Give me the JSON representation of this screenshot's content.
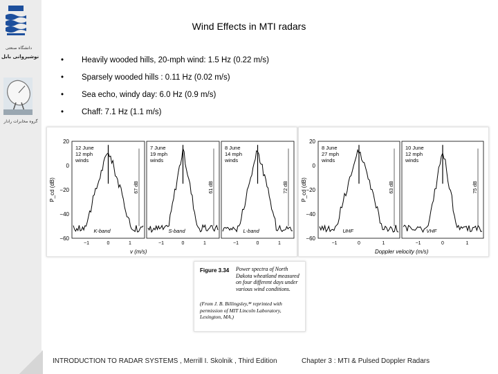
{
  "sidebar": {
    "logo_icon": "university-wave-logo",
    "university_name": "دانشگاه صنعتی",
    "department_name": "نوشیروانی بابل",
    "antenna_icon": "radar-antenna-photo",
    "group_name": "گروه مخابرات رادار"
  },
  "slide": {
    "title": "Wind Effects in MTI radars",
    "bullets": [
      "Heavily wooded hills, 20-mph wind: 1.5 Hz (0.22 m/s)",
      "Sparsely wooded hills : 0.11 Hz (0.02 m/s)",
      "Sea echo, windy day:  6.0 Hz (0.9 m/s)",
      "Chaff: 7.1 Hz (1.1 m/s)"
    ],
    "bullet_symbol": "•"
  },
  "figure_left": {
    "ylabel": "P_cd (dB)",
    "xlabel": "v (m/s)",
    "y_ticks": [
      "20",
      "0",
      "−20",
      "−40",
      "−60"
    ],
    "x_ticks": [
      "−1",
      "0",
      "1"
    ],
    "panels": [
      {
        "date": "12 June",
        "speed": "12 mph",
        "wind": "winds",
        "band": "K-band",
        "level": "67 dB"
      },
      {
        "date": "7 June",
        "speed": "19 mph",
        "wind": "winds",
        "band": "S-band",
        "level": "61 dB"
      },
      {
        "date": "8 June",
        "speed": "14 mph",
        "wind": "winds",
        "band": "L-band",
        "level": "72 dB"
      }
    ]
  },
  "figure_right": {
    "ylabel": "P_cd (dB)",
    "xlabel": "Doppler velocity (m/s)",
    "y_ticks": [
      "20",
      "0",
      "−20",
      "−40",
      "−60"
    ],
    "x_ticks": [
      "−1",
      "0",
      "1"
    ],
    "panels": [
      {
        "date": "8 June",
        "speed": "27 mph",
        "wind": "winds",
        "band": "UHF",
        "level": "63 dB"
      },
      {
        "date": "10 June",
        "speed": "12 mph",
        "wind": "winds",
        "band": "VHF",
        "level": "75 dB"
      }
    ]
  },
  "caption": {
    "label": "Figure 3.34",
    "text": "Power spectra of North Dakota wheatland measured on four different days under various wind conditions.",
    "credit": "(From J. B. Billingsley,³⁸ reprinted with permission of MIT Lincoln Laboratory, Lexington, MA.)"
  },
  "footer": {
    "book": "INTRODUCTION  TO  RADAR  SYSTEMS ,  Merrill I. Skolnik , Third Edition",
    "chapter": "Chapter 3 :   MTI  &  Pulsed Doppler Radars"
  }
}
